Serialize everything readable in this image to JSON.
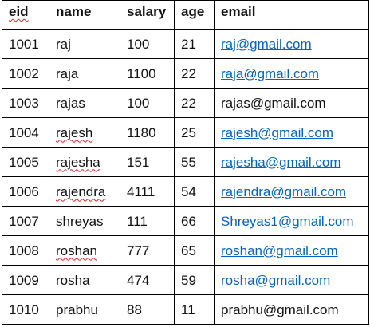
{
  "table": {
    "headers": {
      "eid": "eid",
      "name": "name",
      "salary": "salary",
      "age": "age",
      "email": "email"
    },
    "rows": [
      {
        "eid": "1001",
        "name": "raj",
        "salary": "100",
        "age": "21",
        "email": "raj@gmail.com"
      },
      {
        "eid": "1002",
        "name": "raja",
        "salary": "1100",
        "age": "22",
        "email": "raja@gmail.com"
      },
      {
        "eid": "1003",
        "name": "rajas",
        "salary": "100",
        "age": "22",
        "email": "rajas@gmail.com"
      },
      {
        "eid": "1004",
        "name": "rajesh",
        "salary": "1180",
        "age": "25",
        "email": "rajesh@gmail.com"
      },
      {
        "eid": "1005",
        "name": "rajesha",
        "salary": "151",
        "age": "55",
        "email": "rajesha@gmail.com"
      },
      {
        "eid": "1006",
        "name": "rajendra",
        "salary": "4111",
        "age": "54",
        "email": "rajendra@gmail.com"
      },
      {
        "eid": "1007",
        "name": "shreyas",
        "salary": "111",
        "age": "66",
        "email": "Shreyas1@gmail.com"
      },
      {
        "eid": "1008",
        "name": "roshan",
        "salary": "777",
        "age": "65",
        "email": "roshan@gmail.com"
      },
      {
        "eid": "1009",
        "name": "rosha",
        "salary": "474",
        "age": "59",
        "email": "rosha@gmail.com"
      },
      {
        "eid": "1010",
        "name": "prabhu",
        "salary": "88",
        "age": "11",
        "email": "prabhu@gmail.com"
      }
    ]
  },
  "colors": {
    "hyperlink": "#0563c1",
    "spellcheck": "#e02020",
    "border": "#000000",
    "text": "#111111"
  }
}
